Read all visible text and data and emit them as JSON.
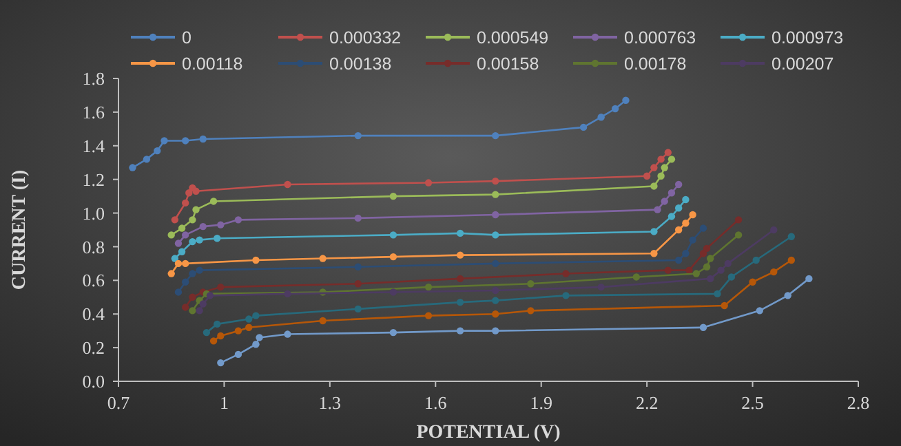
{
  "chart_data": {
    "type": "line",
    "xlabel": "POTENTIAL  (V)",
    "ylabel": "CURRENT (I)",
    "xlim": [
      0.7,
      2.8
    ],
    "xticks": [
      0.7,
      1,
      1.3,
      1.6,
      1.9,
      2.2,
      2.5,
      2.8
    ],
    "ylim": [
      0,
      1.8
    ],
    "yticks": [
      {
        "value": 0,
        "label": "0.0"
      },
      0.2,
      0.4,
      0.6,
      0.8,
      {
        "value": 1,
        "label": "1.0"
      },
      1.2,
      1.4,
      1.6,
      1.8
    ],
    "grid": false,
    "legend": "top",
    "marker": "circle",
    "line_style": "solid",
    "series": [
      {
        "name": "0",
        "color": "#4f81bd",
        "x": [
          0.74,
          0.78,
          0.81,
          0.83,
          0.89,
          0.94,
          1.38,
          1.77,
          2.02,
          2.07,
          2.11,
          2.14
        ],
        "values": [
          1.27,
          1.32,
          1.37,
          1.43,
          1.43,
          1.44,
          1.46,
          1.46,
          1.51,
          1.57,
          1.62,
          1.67
        ]
      },
      {
        "name": "0.000332",
        "color": "#c0504d",
        "x": [
          0.86,
          0.89,
          0.9,
          0.91,
          0.92,
          1.18,
          1.58,
          1.77,
          2.2,
          2.22,
          2.24,
          2.26
        ],
        "values": [
          0.96,
          1.06,
          1.12,
          1.15,
          1.13,
          1.17,
          1.18,
          1.19,
          1.22,
          1.27,
          1.32,
          1.36
        ]
      },
      {
        "name": "0.000549",
        "color": "#9bbb59",
        "x": [
          0.85,
          0.88,
          0.91,
          0.92,
          0.97,
          1.48,
          1.77,
          2.22,
          2.24,
          2.25,
          2.27
        ],
        "values": [
          0.87,
          0.91,
          0.96,
          1.02,
          1.07,
          1.1,
          1.11,
          1.16,
          1.22,
          1.27,
          1.32
        ]
      },
      {
        "name": "0.000763",
        "color": "#8064a2",
        "x": [
          0.87,
          0.89,
          0.94,
          0.99,
          1.04,
          1.38,
          1.77,
          2.23,
          2.25,
          2.27,
          2.29
        ],
        "values": [
          0.82,
          0.87,
          0.92,
          0.93,
          0.96,
          0.97,
          0.99,
          1.02,
          1.07,
          1.12,
          1.17
        ]
      },
      {
        "name": "0.000973",
        "color": "#4bacc6",
        "x": [
          0.86,
          0.88,
          0.91,
          0.93,
          0.98,
          1.48,
          1.67,
          1.77,
          2.22,
          2.27,
          2.29,
          2.31
        ],
        "values": [
          0.73,
          0.77,
          0.83,
          0.84,
          0.85,
          0.87,
          0.88,
          0.87,
          0.89,
          0.98,
          1.03,
          1.08
        ]
      },
      {
        "name": "0.00118",
        "color": "#f79646",
        "x": [
          0.85,
          0.87,
          0.89,
          1.09,
          1.28,
          1.48,
          1.67,
          2.22,
          2.29,
          2.31,
          2.33
        ],
        "values": [
          0.64,
          0.7,
          0.7,
          0.72,
          0.73,
          0.74,
          0.75,
          0.76,
          0.9,
          0.94,
          0.99
        ]
      },
      {
        "name": "0.00138",
        "color": "#2c4d75",
        "x": [
          0.87,
          0.89,
          0.91,
          0.93,
          1.38,
          1.77,
          2.29,
          2.31,
          2.33,
          2.36
        ],
        "values": [
          0.53,
          0.59,
          0.64,
          0.66,
          0.68,
          0.7,
          0.72,
          0.76,
          0.84,
          0.91
        ]
      },
      {
        "name": "0.00158",
        "color": "#772c2a",
        "x": [
          0.89,
          0.91,
          0.94,
          0.99,
          1.38,
          1.67,
          1.97,
          2.26,
          2.32,
          2.36,
          2.37,
          2.46
        ],
        "values": [
          0.44,
          0.5,
          0.53,
          0.56,
          0.58,
          0.61,
          0.64,
          0.66,
          0.66,
          0.76,
          0.79,
          0.96
        ]
      },
      {
        "name": "0.00178",
        "color": "#5f7530",
        "x": [
          0.91,
          0.93,
          0.95,
          1.28,
          1.58,
          1.87,
          2.17,
          2.34,
          2.37,
          2.38,
          2.46
        ],
        "values": [
          0.42,
          0.48,
          0.52,
          0.53,
          0.56,
          0.58,
          0.62,
          0.64,
          0.68,
          0.73,
          0.87
        ]
      },
      {
        "name": "0.00207",
        "color": "#4d3b62",
        "x": [
          0.93,
          0.94,
          0.96,
          1.18,
          1.48,
          1.77,
          2.07,
          2.38,
          2.41,
          2.43,
          2.56
        ],
        "values": [
          0.42,
          0.46,
          0.51,
          0.52,
          0.53,
          0.54,
          0.56,
          0.61,
          0.66,
          0.7,
          0.9
        ]
      },
      {
        "color": "#276a7c",
        "x": [
          0.95,
          0.98,
          1.07,
          1.09,
          1.38,
          1.67,
          1.77,
          1.97,
          2.4,
          2.44,
          2.51,
          2.61
        ],
        "values": [
          0.29,
          0.34,
          0.37,
          0.39,
          0.43,
          0.47,
          0.48,
          0.51,
          0.52,
          0.62,
          0.72,
          0.86
        ]
      },
      {
        "color": "#b65708",
        "x": [
          0.97,
          0.99,
          1.04,
          1.07,
          1.28,
          1.58,
          1.77,
          1.87,
          2.42,
          2.5,
          2.56,
          2.61
        ],
        "values": [
          0.24,
          0.27,
          0.3,
          0.32,
          0.36,
          0.39,
          0.4,
          0.42,
          0.45,
          0.59,
          0.65,
          0.72
        ]
      },
      {
        "color": "#729aca",
        "x": [
          0.99,
          1.04,
          1.09,
          1.1,
          1.18,
          1.48,
          1.67,
          1.77,
          2.36,
          2.52,
          2.6,
          2.66
        ],
        "values": [
          0.11,
          0.16,
          0.22,
          0.26,
          0.28,
          0.29,
          0.3,
          0.3,
          0.32,
          0.42,
          0.51,
          0.61
        ]
      }
    ]
  }
}
